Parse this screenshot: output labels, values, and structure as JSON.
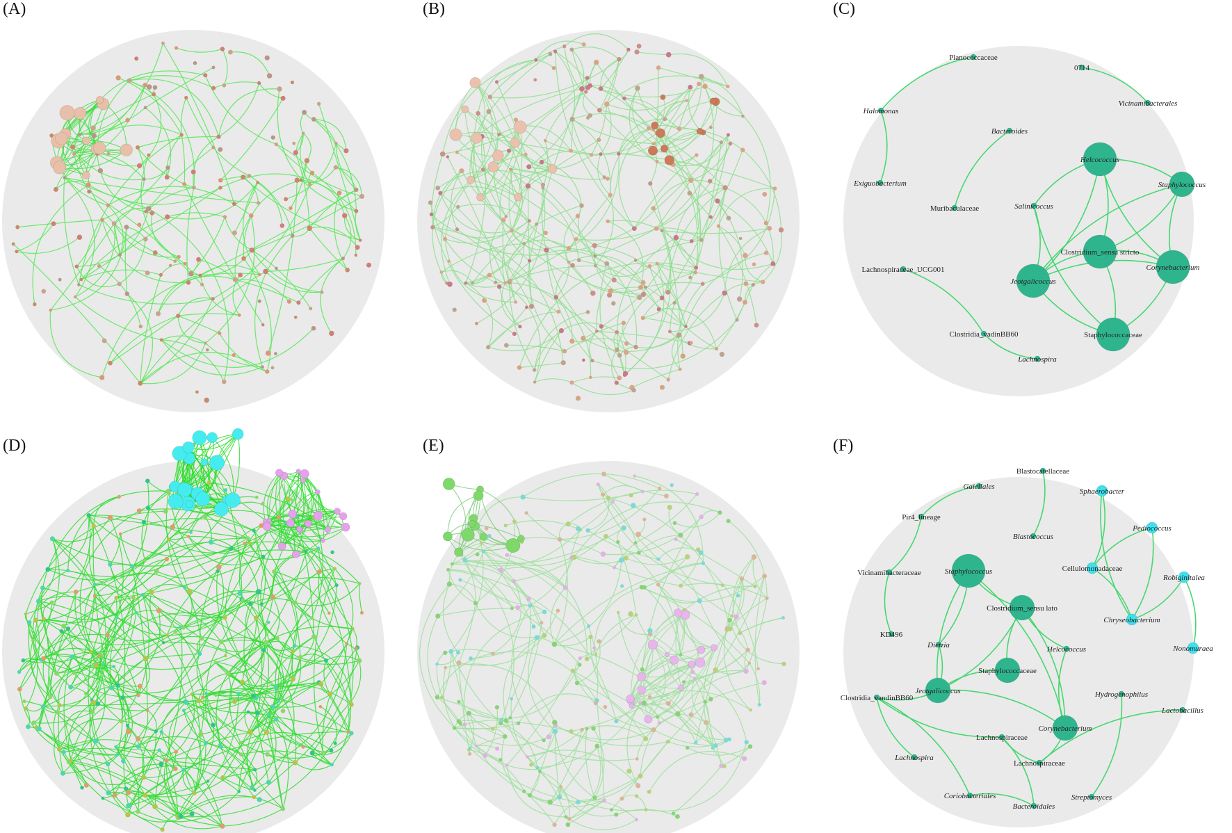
{
  "figure": {
    "panels": [
      {
        "id": "A",
        "label": "(A)",
        "kind": "random",
        "seed": 11,
        "edge_color": "#57e857",
        "node_colors": [
          "#d9987a",
          "#c98a6c",
          "#b9958a",
          "#cd7f7a",
          "#c9a38d"
        ],
        "nodes": 170,
        "edges": 190,
        "cluster": {
          "count": 14,
          "color": "#e8bfa8",
          "edge_color": "#44dd44"
        }
      },
      {
        "id": "B",
        "label": "(B)",
        "kind": "random",
        "seed": 23,
        "edge_color": "#8edf8e",
        "node_colors": [
          "#d9a58e",
          "#c9918a",
          "#c77a8a",
          "#d5a583",
          "#bca48f"
        ],
        "nodes": 230,
        "edges": 300,
        "cluster": {
          "count": 12,
          "color": "#eac1ad",
          "edge_color": "#88df88"
        },
        "cluster2": {
          "count": 10,
          "color": "#cc7a5a"
        }
      },
      {
        "id": "C",
        "label": "(C)",
        "kind": "named",
        "nodes": [
          {
            "label": "Planococcaceae",
            "italic": false,
            "size": "small"
          },
          {
            "label": "0714",
            "italic": false,
            "size": "small"
          },
          {
            "label": "Vicinamibacterales",
            "italic": true,
            "size": "small"
          },
          {
            "label": "Halomonas",
            "italic": true,
            "size": "small"
          },
          {
            "label": "Bacteroides",
            "italic": true,
            "size": "small"
          },
          {
            "label": "Helcococcus",
            "italic": true,
            "size": "large"
          },
          {
            "label": "Staphylococcus",
            "italic": true,
            "size": "medium"
          },
          {
            "label": "Exiguobacterium",
            "italic": true,
            "size": "small"
          },
          {
            "label": "Muribaculaceae",
            "italic": false,
            "size": "small"
          },
          {
            "label": "Salinicoccus",
            "italic": true,
            "size": "small"
          },
          {
            "label": "Clostridium_sensu stricto",
            "italic": false,
            "size": "large"
          },
          {
            "label": "Corynebacterium",
            "italic": true,
            "size": "large"
          },
          {
            "label": "Lachnospiraceae_UCG001",
            "italic": false,
            "size": "small"
          },
          {
            "label": "Jeotgalicoccus",
            "italic": true,
            "size": "large"
          },
          {
            "label": "Staphylococcaceae",
            "italic": false,
            "size": "large"
          },
          {
            "label": "Clostridia_vadinBB60",
            "italic": false,
            "size": "small"
          },
          {
            "label": "Lachnospira",
            "italic": true,
            "size": "small"
          }
        ]
      },
      {
        "id": "D",
        "label": "(D)",
        "kind": "random",
        "seed": 37,
        "edge_color": "#33dd33",
        "node_colors": [
          "#33c48a",
          "#4fd6b0",
          "#d9a06b",
          "#8ad86a",
          "#b6c44c"
        ],
        "nodes": 260,
        "edges": 520,
        "cluster": {
          "count": 20,
          "color": "#44ecf0",
          "edge_color": "#22dd22"
        },
        "cluster2": {
          "count": 22,
          "color": "#e6a0ec"
        }
      },
      {
        "id": "E",
        "label": "(E)",
        "kind": "random",
        "seed": 53,
        "edge_color": "#9ee09e",
        "node_colors": [
          "#8ad27a",
          "#7fd8d8",
          "#d9b59a",
          "#b7d27f",
          "#e3b0e6"
        ],
        "nodes": 230,
        "edges": 260,
        "cluster": {
          "count": 12,
          "color": "#7fd86a",
          "edge_color": "#77cc77"
        },
        "cluster2": {
          "count": 16,
          "color": "#e8b5ec"
        }
      },
      {
        "id": "F",
        "label": "(F)",
        "kind": "named",
        "nodes": [
          {
            "label": "Blastocatellaceae",
            "italic": false,
            "size": "small"
          },
          {
            "label": "Gaiellales",
            "italic": true,
            "size": "small"
          },
          {
            "label": "Sphaerobacter",
            "italic": true,
            "size": "small"
          },
          {
            "label": "Pir4_lineage",
            "italic": false,
            "size": "small"
          },
          {
            "label": "Pediococcus",
            "italic": true,
            "size": "small"
          },
          {
            "label": "Blastococcus",
            "italic": true,
            "size": "small"
          },
          {
            "label": "Cellulomonadaceae",
            "italic": false,
            "size": "small"
          },
          {
            "label": "Vicinamibacteraceae",
            "italic": false,
            "size": "small"
          },
          {
            "label": "Staphylococcus",
            "italic": true,
            "size": "large"
          },
          {
            "label": "Robiginitalea",
            "italic": true,
            "size": "small"
          },
          {
            "label": "Clostridium_sensu lato",
            "italic": false,
            "size": "medium"
          },
          {
            "label": "Chryseobacterium",
            "italic": true,
            "size": "small"
          },
          {
            "label": "KD496",
            "italic": false,
            "size": "small"
          },
          {
            "label": "Dietzia",
            "italic": true,
            "size": "small"
          },
          {
            "label": "Helcococcus",
            "italic": true,
            "size": "small"
          },
          {
            "label": "Nonomuraea",
            "italic": true,
            "size": "small"
          },
          {
            "label": "Staphylococcaceae",
            "italic": false,
            "size": "medium"
          },
          {
            "label": "Jeotgalicoccus",
            "italic": true,
            "size": "medium"
          },
          {
            "label": "Clostridia_vandinBB60",
            "italic": false,
            "size": "small"
          },
          {
            "label": "Hydrogenophilus",
            "italic": true,
            "size": "small"
          },
          {
            "label": "Lactobacillus",
            "italic": true,
            "size": "small"
          },
          {
            "label": "Corynebacterium",
            "italic": true,
            "size": "medium"
          },
          {
            "label": "Lachnospiraceae",
            "italic": false,
            "size": "small"
          },
          {
            "label": "Lachnospira",
            "italic": true,
            "size": "small"
          },
          {
            "label": "Lachnospiraceae",
            "italic": false,
            "size": "small"
          },
          {
            "label": "Coriobacteriales",
            "italic": true,
            "size": "small"
          },
          {
            "label": "Bacteroidales",
            "italic": true,
            "size": "small"
          },
          {
            "label": "Streptomyces",
            "italic": true,
            "size": "small"
          }
        ]
      }
    ],
    "colors": {
      "disk": "#eaeaea",
      "named_edge": "#3fd66a",
      "teal_node": "#2fb58e",
      "cyan_node": "#3ee0ec"
    }
  }
}
